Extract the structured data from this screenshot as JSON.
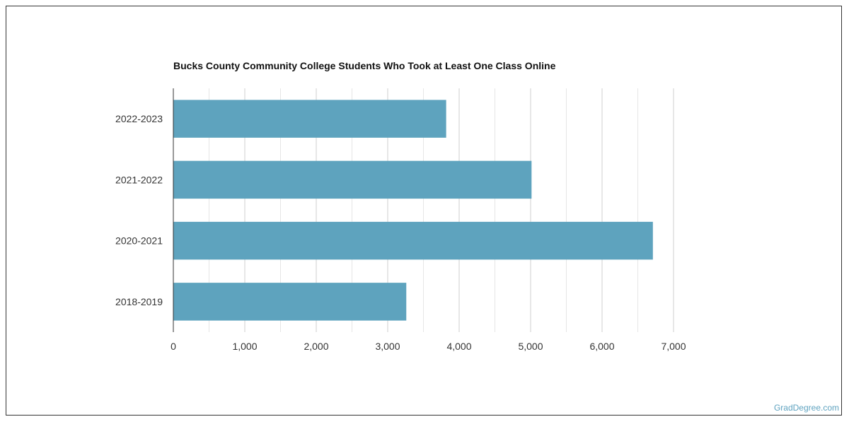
{
  "chart_data": {
    "type": "bar",
    "orientation": "horizontal",
    "title": "Bucks County Community College Students Who Took at Least One Class Online",
    "xlabel": "",
    "ylabel": "",
    "categories": [
      "2022-2023",
      "2021-2022",
      "2020-2021",
      "2018-2019"
    ],
    "values": [
      3818,
      5013,
      6711,
      3260
    ],
    "xlim": [
      0,
      7000
    ],
    "xticks": [
      0,
      1000,
      2000,
      3000,
      4000,
      5000,
      6000,
      7000
    ],
    "xtick_labels": [
      "0",
      "1,000",
      "2,000",
      "3,000",
      "4,000",
      "5,000",
      "6,000",
      "7,000"
    ],
    "grid": true,
    "legend": "none",
    "bar_color": "#5ea3be"
  },
  "watermark": "GradDegree.com"
}
